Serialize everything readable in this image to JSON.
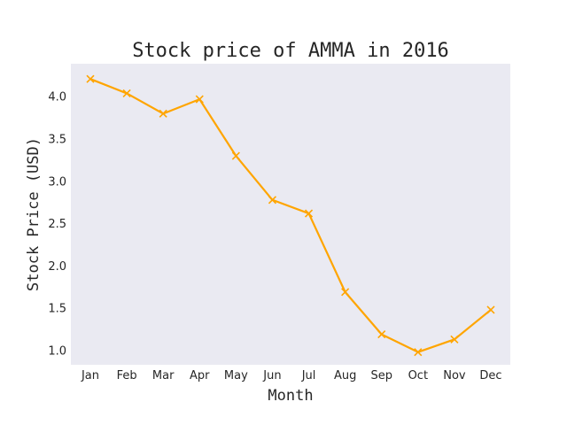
{
  "chart_data": {
    "type": "line",
    "title": "Stock price of AMMA in 2016",
    "xlabel": "Month",
    "ylabel": "Stock Price (USD)",
    "categories": [
      "Jan",
      "Feb",
      "Mar",
      "Apr",
      "May",
      "Jun",
      "Jul",
      "Aug",
      "Sep",
      "Oct",
      "Nov",
      "Dec"
    ],
    "series": [
      {
        "values": [
          4.21,
          4.04,
          3.8,
          3.97,
          3.3,
          2.78,
          2.62,
          1.69,
          1.19,
          0.98,
          1.13,
          1.48
        ],
        "color": "#ffa500",
        "marker": "x"
      }
    ],
    "ylim": [
      0.83,
      4.39
    ],
    "yticks": [
      1.0,
      1.5,
      2.0,
      2.5,
      3.0,
      3.5,
      4.0
    ],
    "ytick_labels": [
      "1.0",
      "1.5",
      "2.0",
      "2.5",
      "3.0",
      "3.5",
      "4.0"
    ],
    "grid": false,
    "plot_background": "#eaeaf2"
  }
}
